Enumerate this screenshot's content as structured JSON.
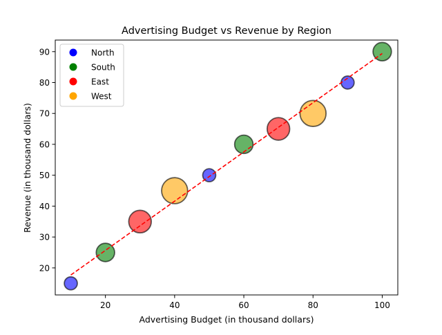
{
  "chart_data": {
    "type": "scatter",
    "title": "Advertising Budget vs Revenue by Region",
    "xlabel": "Advertising Budget (in thousand dollars)",
    "ylabel": "Revenue (in thousand dollars)",
    "xlim": [
      5.5,
      104.5
    ],
    "ylim": [
      11.25,
      93.75
    ],
    "xticks": [
      20,
      40,
      60,
      80,
      100
    ],
    "yticks": [
      20,
      30,
      40,
      50,
      60,
      70,
      80,
      90
    ],
    "grid": false,
    "legend_position": "top-left",
    "series": [
      {
        "name": "North",
        "color": "#0000ff",
        "points": [
          {
            "x": 10,
            "y": 15,
            "size": 1
          },
          {
            "x": 50,
            "y": 50,
            "size": 1
          },
          {
            "x": 90,
            "y": 80,
            "size": 1
          }
        ]
      },
      {
        "name": "South",
        "color": "#008000",
        "points": [
          {
            "x": 20,
            "y": 25,
            "size": 2
          },
          {
            "x": 60,
            "y": 60,
            "size": 2
          },
          {
            "x": 100,
            "y": 90,
            "size": 2
          }
        ]
      },
      {
        "name": "East",
        "color": "#ff0000",
        "points": [
          {
            "x": 30,
            "y": 35,
            "size": 3
          },
          {
            "x": 70,
            "y": 65,
            "size": 3
          }
        ]
      },
      {
        "name": "West",
        "color": "#ffa500",
        "points": [
          {
            "x": 40,
            "y": 45,
            "size": 4
          },
          {
            "x": 80,
            "y": 70,
            "size": 4
          }
        ]
      }
    ],
    "trendline": {
      "color": "#ff0000",
      "style": "dashed",
      "x": [
        10,
        100
      ],
      "y": [
        17.7,
        89.4
      ]
    }
  }
}
